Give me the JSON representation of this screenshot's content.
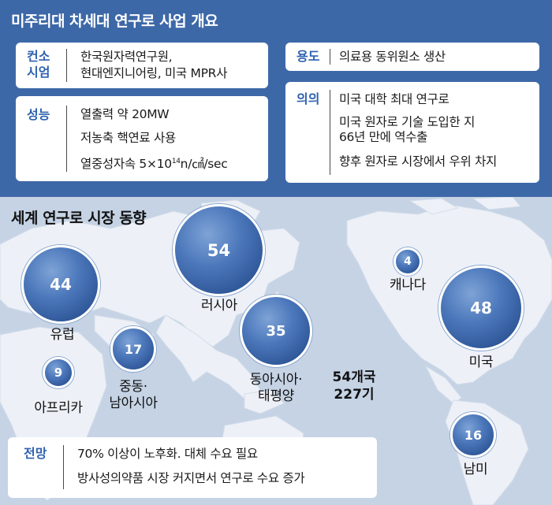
{
  "header": {
    "title": "미주리대 차세대 연구로 사업 개요"
  },
  "info": {
    "builder": {
      "label_line1": "컨소",
      "label_line2": "시엄",
      "line1": "한국원자력연구원,",
      "line2": "현대엔지니어링, 미국 MPR사"
    },
    "usage": {
      "label": "용도",
      "text": "의료용 동위원소 생산"
    },
    "performance": {
      "label": "성능",
      "line1": "열출력 약 20MW",
      "line2": "저농축 핵연료 사용",
      "line3_prefix": "열중성자속 5×10",
      "line3_sup": "14",
      "line3_suffix": "n/㎠/sec"
    },
    "significance": {
      "label": "의의",
      "line1": "미국 대학 최대 연구로",
      "line2": "미국 원자로 기술 도입한 지",
      "line3": "66년 만에 역수출",
      "line4": "향후 원자로 시장에서 우위 차지"
    }
  },
  "market": {
    "title": "세계 연구로 시장 동향",
    "regions": [
      {
        "name": "유럽",
        "value": "44"
      },
      {
        "name": "러시아",
        "value": "54"
      },
      {
        "name": "캐나다",
        "value": "4"
      },
      {
        "name": "미국",
        "value": "48"
      },
      {
        "name": "동아시아·",
        "name2": "태평양",
        "value": "35"
      },
      {
        "name": "중동·",
        "name2": "남아시아",
        "value": "17"
      },
      {
        "name": "아프리카",
        "value": "9"
      },
      {
        "name": "남미",
        "value": "16"
      }
    ],
    "total_line1": "54개국",
    "total_line2": "227기"
  },
  "outlook": {
    "label": "전망",
    "line1": "70% 이상이 노후화. 대체 수요 필요",
    "line2": "방사성의약품 시장 커지면서 연구로 수요 증가"
  },
  "colors": {
    "header_bg": "#3d68a8",
    "label": "#2f62b0",
    "bubble": "#3a66a8",
    "map_land": "#e9eef5",
    "map_sea": "#c5d3e5"
  }
}
